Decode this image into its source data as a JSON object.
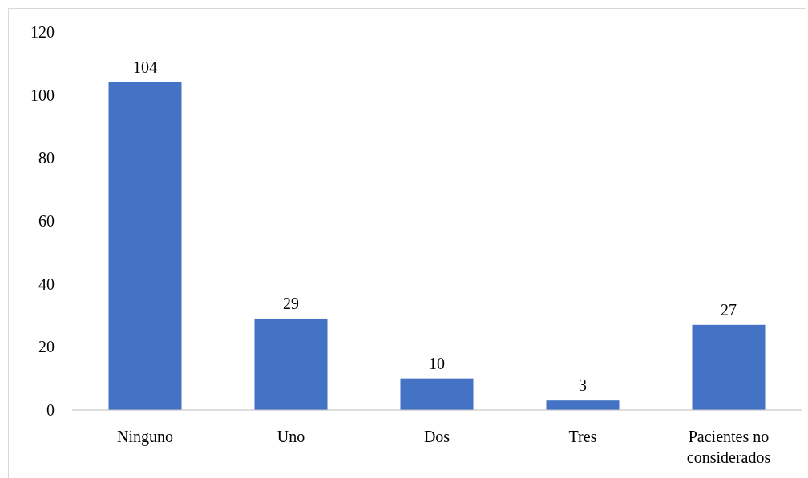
{
  "chart_data": {
    "type": "bar",
    "categories": [
      "Ninguno",
      "Uno",
      "Dos",
      "Tres",
      "Pacientes no considerados"
    ],
    "values": [
      104,
      29,
      10,
      3,
      27
    ],
    "color": "#4472c4",
    "ylim": [
      0,
      120
    ],
    "yticks": [
      0,
      20,
      40,
      60,
      80,
      100,
      120
    ],
    "grid": false,
    "data_labels": true
  }
}
